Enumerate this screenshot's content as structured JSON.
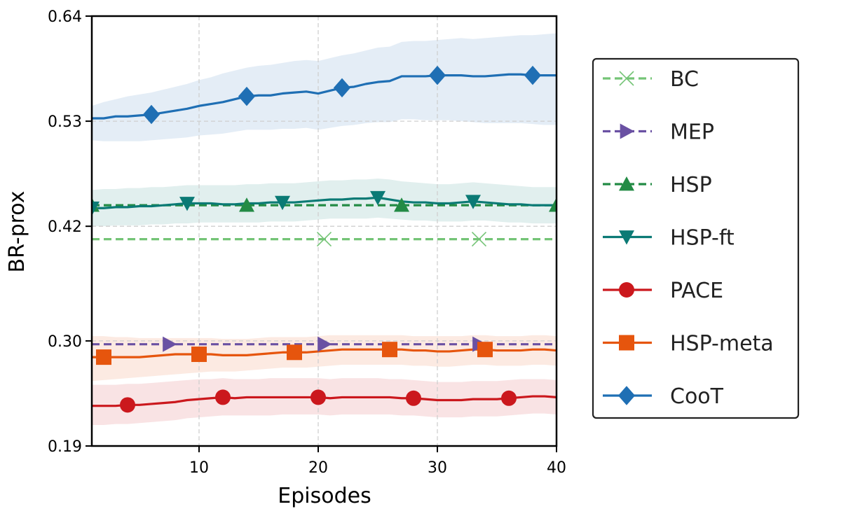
{
  "chart_data": {
    "type": "line",
    "title": "",
    "xlabel": "Episodes",
    "ylabel": "BR-prox",
    "xlim": [
      1,
      40
    ],
    "ylim": [
      0.19,
      0.64
    ],
    "x_ticks": [
      10,
      20,
      30,
      40
    ],
    "x_tick_labels": [
      "10",
      "20",
      "30",
      "40"
    ],
    "y_ticks": [
      0.19,
      0.3,
      0.42,
      0.53,
      0.64
    ],
    "y_tick_labels": [
      "0.19",
      "0.30",
      "0.42",
      "0.53",
      "0.64"
    ],
    "grid": true,
    "legend_placement": "outside-right",
    "series": [
      {
        "name": "BC",
        "color": "#74c476",
        "style": "dashed",
        "marker": "x",
        "x": [
          1,
          40
        ],
        "y": [
          0.4065,
          0.4065
        ],
        "marker_x": [
          20.5,
          33.5
        ],
        "band": null
      },
      {
        "name": "MEP",
        "color": "#6a51a3",
        "style": "dashed",
        "marker": "triangle-right",
        "x": [
          1,
          40
        ],
        "y": [
          0.2965,
          0.2965
        ],
        "marker_x": [
          7.5,
          20.5,
          33.5
        ],
        "band": null
      },
      {
        "name": "HSP",
        "color": "#238b45",
        "style": "dashed",
        "marker": "triangle-up",
        "x": [
          1,
          40
        ],
        "y": [
          0.442,
          0.442
        ],
        "marker_x": [
          1,
          14,
          27,
          40
        ],
        "band": null
      },
      {
        "name": "HSP-ft",
        "color": "#0b7a75",
        "style": "solid",
        "marker": "triangle-down",
        "x": [
          1,
          2,
          3,
          4,
          5,
          6,
          7,
          8,
          9,
          10,
          11,
          12,
          13,
          14,
          15,
          16,
          17,
          18,
          19,
          20,
          21,
          22,
          23,
          24,
          25,
          26,
          27,
          28,
          29,
          30,
          31,
          32,
          33,
          34,
          35,
          36,
          37,
          38,
          39,
          40
        ],
        "y": [
          0.439,
          0.439,
          0.44,
          0.44,
          0.441,
          0.441,
          0.442,
          0.443,
          0.444,
          0.444,
          0.444,
          0.443,
          0.443,
          0.444,
          0.444,
          0.445,
          0.445,
          0.445,
          0.446,
          0.447,
          0.448,
          0.448,
          0.449,
          0.449,
          0.45,
          0.448,
          0.446,
          0.445,
          0.445,
          0.444,
          0.444,
          0.445,
          0.446,
          0.445,
          0.444,
          0.443,
          0.443,
          0.442,
          0.442,
          0.442
        ],
        "marker_x": [
          1,
          9,
          17,
          25,
          33
        ],
        "band_lower": [
          0.42,
          0.42,
          0.421,
          0.421,
          0.421,
          0.422,
          0.422,
          0.423,
          0.423,
          0.424,
          0.424,
          0.424,
          0.424,
          0.424,
          0.424,
          0.425,
          0.425,
          0.425,
          0.426,
          0.427,
          0.428,
          0.428,
          0.428,
          0.428,
          0.429,
          0.428,
          0.427,
          0.426,
          0.426,
          0.425,
          0.425,
          0.425,
          0.426,
          0.426,
          0.425,
          0.424,
          0.424,
          0.423,
          0.423,
          0.423
        ],
        "band_upper": [
          0.458,
          0.459,
          0.459,
          0.46,
          0.46,
          0.461,
          0.461,
          0.462,
          0.463,
          0.463,
          0.463,
          0.463,
          0.463,
          0.464,
          0.464,
          0.465,
          0.465,
          0.465,
          0.466,
          0.467,
          0.468,
          0.468,
          0.469,
          0.469,
          0.47,
          0.469,
          0.467,
          0.466,
          0.465,
          0.464,
          0.464,
          0.465,
          0.466,
          0.465,
          0.464,
          0.463,
          0.462,
          0.461,
          0.461,
          0.461
        ]
      },
      {
        "name": "PACE",
        "color": "#cb181d",
        "style": "solid",
        "marker": "circle",
        "x": [
          1,
          2,
          3,
          4,
          5,
          6,
          7,
          8,
          9,
          10,
          11,
          12,
          13,
          14,
          15,
          16,
          17,
          18,
          19,
          20,
          21,
          22,
          23,
          24,
          25,
          26,
          27,
          28,
          29,
          30,
          31,
          32,
          33,
          34,
          35,
          36,
          37,
          38,
          39,
          40
        ],
        "y": [
          0.232,
          0.232,
          0.232,
          0.233,
          0.233,
          0.234,
          0.235,
          0.236,
          0.238,
          0.239,
          0.24,
          0.241,
          0.24,
          0.241,
          0.241,
          0.241,
          0.241,
          0.241,
          0.241,
          0.241,
          0.24,
          0.241,
          0.241,
          0.241,
          0.241,
          0.241,
          0.24,
          0.24,
          0.239,
          0.238,
          0.238,
          0.238,
          0.239,
          0.239,
          0.239,
          0.24,
          0.241,
          0.242,
          0.242,
          0.241
        ],
        "marker_x": [
          4,
          12,
          20,
          28,
          36
        ],
        "band_lower": [
          0.212,
          0.212,
          0.213,
          0.213,
          0.214,
          0.215,
          0.216,
          0.217,
          0.219,
          0.22,
          0.221,
          0.222,
          0.222,
          0.222,
          0.222,
          0.222,
          0.223,
          0.223,
          0.223,
          0.223,
          0.222,
          0.223,
          0.223,
          0.223,
          0.223,
          0.223,
          0.222,
          0.222,
          0.221,
          0.22,
          0.22,
          0.22,
          0.221,
          0.221,
          0.221,
          0.222,
          0.223,
          0.224,
          0.224,
          0.223
        ],
        "band_upper": [
          0.254,
          0.254,
          0.254,
          0.255,
          0.255,
          0.256,
          0.257,
          0.258,
          0.259,
          0.26,
          0.26,
          0.261,
          0.26,
          0.26,
          0.26,
          0.261,
          0.261,
          0.261,
          0.261,
          0.261,
          0.26,
          0.261,
          0.261,
          0.261,
          0.261,
          0.26,
          0.26,
          0.259,
          0.258,
          0.257,
          0.257,
          0.257,
          0.258,
          0.258,
          0.258,
          0.259,
          0.26,
          0.26,
          0.26,
          0.259
        ]
      },
      {
        "name": "HSP-meta",
        "color": "#e6550d",
        "style": "solid",
        "marker": "square",
        "x": [
          1,
          2,
          3,
          4,
          5,
          6,
          7,
          8,
          9,
          10,
          11,
          12,
          13,
          14,
          15,
          16,
          17,
          18,
          19,
          20,
          21,
          22,
          23,
          24,
          25,
          26,
          27,
          28,
          29,
          30,
          31,
          32,
          33,
          34,
          35,
          36,
          37,
          38,
          39,
          40
        ],
        "y": [
          0.283,
          0.283,
          0.283,
          0.283,
          0.283,
          0.284,
          0.285,
          0.286,
          0.286,
          0.286,
          0.286,
          0.285,
          0.285,
          0.285,
          0.286,
          0.287,
          0.288,
          0.288,
          0.288,
          0.289,
          0.29,
          0.291,
          0.291,
          0.291,
          0.291,
          0.291,
          0.291,
          0.29,
          0.29,
          0.289,
          0.289,
          0.29,
          0.291,
          0.291,
          0.29,
          0.29,
          0.29,
          0.291,
          0.291,
          0.29
        ],
        "marker_x": [
          2,
          10,
          18,
          26,
          34
        ],
        "band_lower": [
          0.258,
          0.259,
          0.26,
          0.261,
          0.262,
          0.263,
          0.264,
          0.265,
          0.266,
          0.267,
          0.268,
          0.268,
          0.268,
          0.269,
          0.27,
          0.271,
          0.272,
          0.272,
          0.272,
          0.273,
          0.274,
          0.275,
          0.275,
          0.275,
          0.275,
          0.275,
          0.275,
          0.274,
          0.274,
          0.273,
          0.273,
          0.274,
          0.275,
          0.275,
          0.274,
          0.274,
          0.274,
          0.275,
          0.275,
          0.274
        ],
        "band_upper": [
          0.305,
          0.305,
          0.304,
          0.304,
          0.303,
          0.303,
          0.303,
          0.303,
          0.303,
          0.303,
          0.303,
          0.302,
          0.302,
          0.302,
          0.303,
          0.304,
          0.304,
          0.304,
          0.304,
          0.305,
          0.306,
          0.306,
          0.306,
          0.306,
          0.306,
          0.306,
          0.306,
          0.305,
          0.305,
          0.305,
          0.305,
          0.305,
          0.306,
          0.306,
          0.305,
          0.305,
          0.305,
          0.306,
          0.306,
          0.305
        ]
      },
      {
        "name": "CooT",
        "color": "#1f6fb4",
        "style": "solid",
        "marker": "diamond",
        "x": [
          1,
          2,
          3,
          4,
          5,
          6,
          7,
          8,
          9,
          10,
          11,
          12,
          13,
          14,
          15,
          16,
          17,
          18,
          19,
          20,
          21,
          22,
          23,
          24,
          25,
          26,
          27,
          28,
          29,
          30,
          31,
          32,
          33,
          34,
          35,
          36,
          37,
          38,
          39,
          40
        ],
        "y": [
          0.533,
          0.533,
          0.535,
          0.535,
          0.536,
          0.537,
          0.539,
          0.541,
          0.543,
          0.546,
          0.548,
          0.55,
          0.553,
          0.556,
          0.557,
          0.557,
          0.559,
          0.56,
          0.561,
          0.559,
          0.562,
          0.565,
          0.566,
          0.569,
          0.571,
          0.572,
          0.577,
          0.577,
          0.577,
          0.578,
          0.578,
          0.578,
          0.577,
          0.577,
          0.578,
          0.579,
          0.579,
          0.578,
          0.578,
          0.578
        ],
        "marker_x": [
          6,
          14,
          22,
          30,
          38
        ],
        "band_lower": [
          0.51,
          0.509,
          0.509,
          0.509,
          0.509,
          0.51,
          0.511,
          0.512,
          0.513,
          0.515,
          0.516,
          0.517,
          0.519,
          0.521,
          0.521,
          0.521,
          0.522,
          0.522,
          0.523,
          0.521,
          0.523,
          0.525,
          0.526,
          0.528,
          0.529,
          0.529,
          0.532,
          0.532,
          0.531,
          0.531,
          0.531,
          0.53,
          0.529,
          0.528,
          0.528,
          0.528,
          0.528,
          0.527,
          0.526,
          0.526
        ],
        "band_upper": [
          0.546,
          0.55,
          0.553,
          0.556,
          0.558,
          0.56,
          0.563,
          0.566,
          0.569,
          0.573,
          0.576,
          0.58,
          0.583,
          0.586,
          0.588,
          0.589,
          0.591,
          0.593,
          0.594,
          0.593,
          0.596,
          0.599,
          0.601,
          0.604,
          0.607,
          0.608,
          0.613,
          0.614,
          0.614,
          0.615,
          0.616,
          0.617,
          0.616,
          0.617,
          0.618,
          0.619,
          0.62,
          0.62,
          0.621,
          0.622
        ]
      }
    ],
    "legend_order": [
      "BC",
      "MEP",
      "HSP",
      "HSP-ft",
      "PACE",
      "HSP-meta",
      "CooT"
    ]
  }
}
